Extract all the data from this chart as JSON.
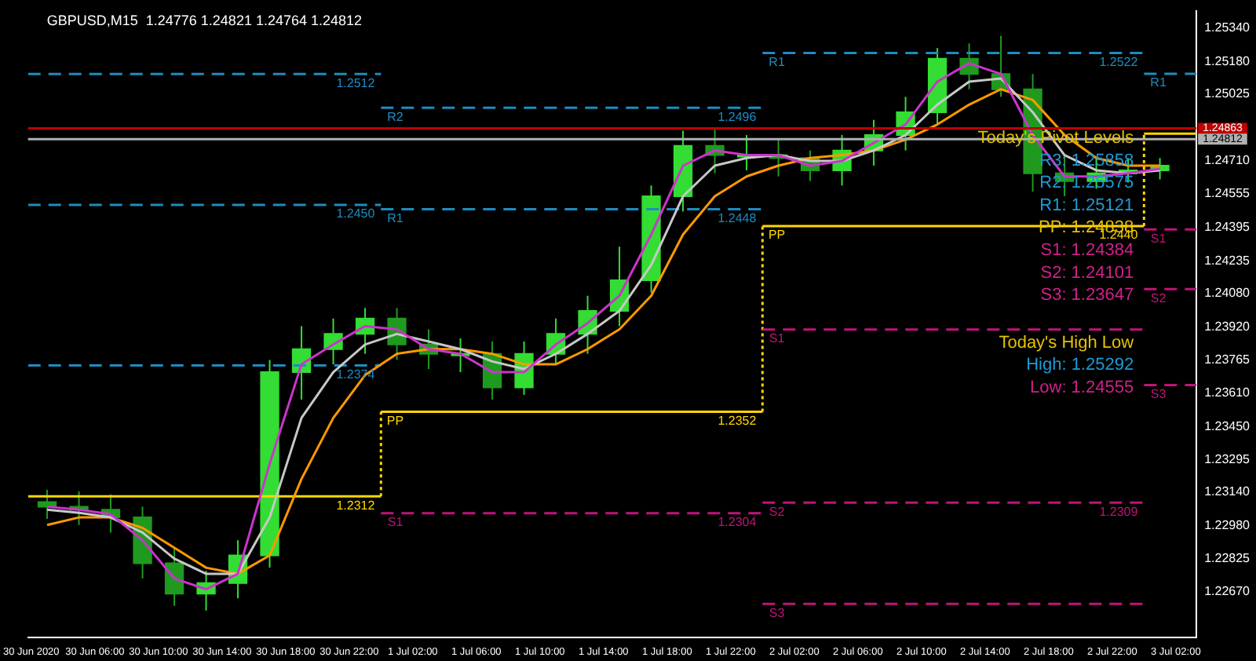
{
  "chart_data": {
    "type": "candlestick",
    "title": "GBPUSD,M15  1.24776 1.24821 1.24764 1.24812",
    "xlim": [
      "2020-06-30T01:48",
      "2020-07-03T03:18"
    ],
    "xticks": [
      {
        "value": "2020-06-30T02:00",
        "label": "30 Jun 2020"
      },
      {
        "value": "2020-06-30T06:00",
        "label": "30 Jun 06:00"
      },
      {
        "value": "2020-06-30T10:00",
        "label": "30 Jun 10:00"
      },
      {
        "value": "2020-06-30T14:00",
        "label": "30 Jun 14:00"
      },
      {
        "value": "2020-06-30T18:00",
        "label": "30 Jun 18:00"
      },
      {
        "value": "2020-06-30T22:00",
        "label": "30 Jun 22:00"
      },
      {
        "value": "2020-07-01T02:00",
        "label": "1 Jul 02:00"
      },
      {
        "value": "2020-07-01T06:00",
        "label": "1 Jul 06:00"
      },
      {
        "value": "2020-07-01T10:00",
        "label": "1 Jul 10:00"
      },
      {
        "value": "2020-07-01T14:00",
        "label": "1 Jul 14:00"
      },
      {
        "value": "2020-07-01T18:00",
        "label": "1 Jul 18:00"
      },
      {
        "value": "2020-07-01T22:00",
        "label": "1 Jul 22:00"
      },
      {
        "value": "2020-07-02T02:00",
        "label": "2 Jul 02:00"
      },
      {
        "value": "2020-07-02T06:00",
        "label": "2 Jul 06:00"
      },
      {
        "value": "2020-07-02T10:00",
        "label": "2 Jul 10:00"
      },
      {
        "value": "2020-07-02T14:00",
        "label": "2 Jul 14:00"
      },
      {
        "value": "2020-07-02T18:00",
        "label": "2 Jul 18:00"
      },
      {
        "value": "2020-07-02T22:00",
        "label": "2 Jul 22:00"
      },
      {
        "value": "2020-07-03T02:00",
        "label": "3 Jul 02:00"
      }
    ],
    "ylim": [
      1.2245,
      1.2542
    ],
    "yticks": [
      {
        "value": 1.2534,
        "label": "1.25340"
      },
      {
        "value": 1.2518,
        "label": "1.25180"
      },
      {
        "value": 1.25025,
        "label": "1.25025"
      },
      {
        "value": 1.2471,
        "label": "1.24710"
      },
      {
        "value": 1.24555,
        "label": "1.24555"
      },
      {
        "value": 1.24395,
        "label": "1.24395"
      },
      {
        "value": 1.24235,
        "label": "1.24235"
      },
      {
        "value": 1.2408,
        "label": "1.24080"
      },
      {
        "value": 1.2392,
        "label": "1.23920"
      },
      {
        "value": 1.23765,
        "label": "1.23765"
      },
      {
        "value": 1.2361,
        "label": "1.23610"
      },
      {
        "value": 1.2345,
        "label": "1.23450"
      },
      {
        "value": 1.23295,
        "label": "1.23295"
      },
      {
        "value": 1.2314,
        "label": "1.23140"
      },
      {
        "value": 1.2298,
        "label": "1.22980"
      },
      {
        "value": 1.22825,
        "label": "1.22825"
      },
      {
        "value": 1.2267,
        "label": "1.22670"
      }
    ],
    "ref_lines": [
      {
        "axis": "y",
        "value": 1.24863,
        "label": "1.24863",
        "color": "#c00000"
      },
      {
        "axis": "y",
        "value": 1.24812,
        "label": "1.24812",
        "color": "#b0b0b0"
      }
    ],
    "series": [
      {
        "type": "line",
        "color": "#cc33cc",
        "line_style": "solid",
        "x": [
          "2020-06-30T03:00",
          "2020-06-30T05:00",
          "2020-06-30T07:00",
          "2020-06-30T09:00",
          "2020-06-30T11:00",
          "2020-06-30T13:00",
          "2020-06-30T15:00",
          "2020-06-30T17:00",
          "2020-06-30T19:00",
          "2020-06-30T21:00",
          "2020-06-30T23:00",
          "2020-07-01T01:00",
          "2020-07-01T03:00",
          "2020-07-01T05:00",
          "2020-07-01T07:00",
          "2020-07-01T09:00",
          "2020-07-01T11:00",
          "2020-07-01T13:00",
          "2020-07-01T15:00",
          "2020-07-01T17:00",
          "2020-07-01T19:00",
          "2020-07-01T21:00",
          "2020-07-01T23:00",
          "2020-07-02T01:00",
          "2020-07-02T03:00",
          "2020-07-02T05:00",
          "2020-07-02T07:00",
          "2020-07-02T09:00",
          "2020-07-02T11:00",
          "2020-07-02T13:00",
          "2020-07-02T15:00",
          "2020-07-02T17:00",
          "2020-07-02T19:00",
          "2020-07-02T21:00",
          "2020-07-02T23:00",
          "2020-07-03T01:00"
        ],
        "values": [
          1.23071,
          1.23057,
          1.23035,
          1.22912,
          1.22731,
          1.2268,
          1.22753,
          1.23274,
          1.23745,
          1.23839,
          1.23926,
          1.23911,
          1.23817,
          1.23795,
          1.23708,
          1.23708,
          1.23839,
          1.2394,
          1.2407,
          1.2436,
          1.24686,
          1.24758,
          1.24736,
          1.24736,
          1.24686,
          1.24708,
          1.24794,
          1.24881,
          1.25084,
          1.25171,
          1.2512,
          1.24831,
          1.24635,
          1.24635,
          1.2465,
          1.24671
        ]
      },
      {
        "type": "line",
        "color": "#c8c8c8",
        "line_style": "solid",
        "x": [
          "2020-06-30T03:00",
          "2020-06-30T05:00",
          "2020-06-30T07:00",
          "2020-06-30T09:00",
          "2020-06-30T11:00",
          "2020-06-30T13:00",
          "2020-06-30T15:00",
          "2020-06-30T17:00",
          "2020-06-30T19:00",
          "2020-06-30T21:00",
          "2020-06-30T23:00",
          "2020-07-01T01:00",
          "2020-07-01T03:00",
          "2020-07-01T05:00",
          "2020-07-01T07:00",
          "2020-07-01T09:00",
          "2020-07-01T11:00",
          "2020-07-01T13:00",
          "2020-07-01T15:00",
          "2020-07-01T17:00",
          "2020-07-01T19:00",
          "2020-07-01T21:00",
          "2020-07-01T23:00",
          "2020-07-02T01:00",
          "2020-07-02T03:00",
          "2020-07-02T05:00",
          "2020-07-02T07:00",
          "2020-07-02T09:00",
          "2020-07-02T11:00",
          "2020-07-02T13:00",
          "2020-07-02T15:00",
          "2020-07-02T17:00",
          "2020-07-02T19:00",
          "2020-07-02T21:00",
          "2020-07-02T23:00",
          "2020-07-03T01:00"
        ],
        "values": [
          1.23057,
          1.23042,
          1.2302,
          1.22948,
          1.22825,
          1.22753,
          1.22753,
          1.2302,
          1.23491,
          1.23708,
          1.23839,
          1.23889,
          1.23853,
          1.23817,
          1.23759,
          1.23723,
          1.23795,
          1.23889,
          1.23998,
          1.24215,
          1.24541,
          1.24686,
          1.24722,
          1.24736,
          1.24708,
          1.24708,
          1.24758,
          1.24831,
          1.24975,
          1.25084,
          1.25099,
          1.24939,
          1.24736,
          1.24664,
          1.2465,
          1.24664
        ]
      },
      {
        "type": "line",
        "color": "#ff9900",
        "line_style": "solid",
        "x": [
          "2020-06-30T03:00",
          "2020-06-30T05:00",
          "2020-06-30T07:00",
          "2020-06-30T09:00",
          "2020-06-30T11:00",
          "2020-06-30T13:00",
          "2020-06-30T15:00",
          "2020-06-30T17:00",
          "2020-06-30T19:00",
          "2020-06-30T21:00",
          "2020-06-30T23:00",
          "2020-07-01T01:00",
          "2020-07-01T03:00",
          "2020-07-01T05:00",
          "2020-07-01T07:00",
          "2020-07-01T09:00",
          "2020-07-01T11:00",
          "2020-07-01T13:00",
          "2020-07-01T15:00",
          "2020-07-01T17:00",
          "2020-07-01T19:00",
          "2020-07-01T21:00",
          "2020-07-01T23:00",
          "2020-07-02T01:00",
          "2020-07-02T03:00",
          "2020-07-02T05:00",
          "2020-07-02T07:00",
          "2020-07-02T09:00",
          "2020-07-02T11:00",
          "2020-07-02T13:00",
          "2020-07-02T15:00",
          "2020-07-02T17:00",
          "2020-07-02T19:00",
          "2020-07-02T21:00",
          "2020-07-02T23:00",
          "2020-07-03T01:00"
        ],
        "values": [
          1.22984,
          1.2302,
          1.2302,
          1.2297,
          1.22876,
          1.22782,
          1.22753,
          1.2284,
          1.23202,
          1.23491,
          1.23694,
          1.23795,
          1.23817,
          1.23817,
          1.23795,
          1.23745,
          1.23745,
          1.23817,
          1.23911,
          1.2407,
          1.2436,
          1.24541,
          1.24635,
          1.24686,
          1.24722,
          1.24736,
          1.24758,
          1.24809,
          1.24881,
          1.24975,
          1.25048,
          1.24997,
          1.24831,
          1.24722,
          1.24686,
          1.24686
        ]
      },
      {
        "type": "line",
        "color": "#1e8cc0",
        "line_style": "dashed",
        "x": [
          "2020-06-30T01:48",
          "2020-07-01T00:00"
        ],
        "values": [
          1.2512,
          1.2512
        ]
      },
      {
        "type": "line",
        "color": "#1e8cc0",
        "line_style": "dashed",
        "x": [
          "2020-06-30T01:48",
          "2020-07-01T00:00"
        ],
        "values": [
          1.245,
          1.245
        ]
      },
      {
        "type": "line",
        "color": "#1e8cc0",
        "line_style": "dashed",
        "x": [
          "2020-06-30T01:48",
          "2020-07-01T00:00"
        ],
        "values": [
          1.2374,
          1.2374
        ]
      },
      {
        "type": "line",
        "color": "#1e8cc0",
        "line_style": "dashed",
        "x": [
          "2020-07-01T00:00",
          "2020-07-02T00:00"
        ],
        "values": [
          1.2496,
          1.2496
        ]
      },
      {
        "type": "line",
        "color": "#1e8cc0",
        "line_style": "dashed",
        "x": [
          "2020-07-01T00:00",
          "2020-07-02T00:00"
        ],
        "values": [
          1.2448,
          1.2448
        ]
      },
      {
        "type": "line",
        "color": "#c0147a",
        "line_style": "dashed",
        "x": [
          "2020-07-01T00:00",
          "2020-07-02T00:00"
        ],
        "values": [
          1.2304,
          1.2304
        ]
      },
      {
        "type": "line",
        "color": "#1e8cc0",
        "line_style": "dashed",
        "x": [
          "2020-07-02T00:00",
          "2020-07-03T00:00"
        ],
        "values": [
          1.2522,
          1.2522
        ]
      },
      {
        "type": "line",
        "color": "#c0147a",
        "line_style": "dashed",
        "x": [
          "2020-07-02T00:00",
          "2020-07-03T00:00"
        ],
        "values": [
          1.2391,
          1.2391
        ]
      },
      {
        "type": "line",
        "color": "#c0147a",
        "line_style": "dashed",
        "x": [
          "2020-07-02T00:00",
          "2020-07-03T00:00"
        ],
        "values": [
          1.2309,
          1.2309
        ]
      },
      {
        "type": "line",
        "color": "#c0147a",
        "line_style": "dashed",
        "x": [
          "2020-07-02T00:00",
          "2020-07-03T00:00"
        ],
        "values": [
          1.2261,
          1.2261
        ]
      },
      {
        "type": "line",
        "color": "#1e8cc0",
        "line_style": "dashed",
        "x": [
          "2020-07-03T00:00",
          "2020-07-03T03:18"
        ],
        "values": [
          1.25121,
          1.25121
        ]
      },
      {
        "type": "line",
        "color": "#c0147a",
        "line_style": "dashed",
        "x": [
          "2020-07-03T00:00",
          "2020-07-03T03:18"
        ],
        "values": [
          1.24384,
          1.24384
        ]
      },
      {
        "type": "line",
        "color": "#c0147a",
        "line_style": "dashed",
        "x": [
          "2020-07-03T00:00",
          "2020-07-03T03:18"
        ],
        "values": [
          1.24101,
          1.24101
        ]
      },
      {
        "type": "line",
        "color": "#c0147a",
        "line_style": "dashed",
        "x": [
          "2020-07-03T00:00",
          "2020-07-03T03:18"
        ],
        "values": [
          1.23647,
          1.23647
        ]
      },
      {
        "type": "step",
        "color": "#ffd700",
        "line_style": "solid",
        "x": [
          "2020-06-30T01:48",
          "2020-07-01T00:00",
          "2020-07-02T00:00",
          "2020-07-03T00:00",
          "2020-07-03T03:18"
        ],
        "values": [
          1.2312,
          1.2352,
          1.244,
          1.24838,
          1.24838
        ]
      },
      {
        "colors": [
          "#1f9a1f",
          "#1f9a1f",
          "#1f9a1f",
          "#1f9a1f",
          "#1f9a1f",
          "#33dd33",
          "#33dd33",
          "#33dd33",
          "#33dd33",
          "#33dd33",
          "#33dd33",
          "#1f9a1f",
          "#1f9a1f",
          "#33dd33",
          "#1f9a1f",
          "#33dd33",
          "#33dd33",
          "#33dd33",
          "#33dd33",
          "#33dd33",
          "#33dd33",
          "#1f9a1f",
          "#33dd33",
          "#1f9a1f",
          "#1f9a1f",
          "#33dd33",
          "#33dd33",
          "#33dd33",
          "#33dd33",
          "#1f9a1f",
          "#1f9a1f",
          "#1f9a1f",
          "#1f9a1f",
          "#33dd33",
          "#33dd33",
          "#33dd33"
        ],
        "x": [
          "2020-06-30T03:00",
          "2020-06-30T05:00",
          "2020-06-30T07:00",
          "2020-06-30T09:00",
          "2020-06-30T11:00",
          "2020-06-30T13:00",
          "2020-06-30T15:00",
          "2020-06-30T17:00",
          "2020-06-30T19:00",
          "2020-06-30T21:00",
          "2020-06-30T23:00",
          "2020-07-01T01:00",
          "2020-07-01T03:00",
          "2020-07-01T05:00",
          "2020-07-01T07:00",
          "2020-07-01T09:00",
          "2020-07-01T11:00",
          "2020-07-01T13:00",
          "2020-07-01T15:00",
          "2020-07-01T17:00",
          "2020-07-01T19:00",
          "2020-07-01T21:00",
          "2020-07-01T23:00",
          "2020-07-02T01:00",
          "2020-07-02T03:00",
          "2020-07-02T05:00",
          "2020-07-02T07:00",
          "2020-07-02T09:00",
          "2020-07-02T11:00",
          "2020-07-02T13:00",
          "2020-07-02T15:00",
          "2020-07-02T17:00",
          "2020-07-02T19:00",
          "2020-07-02T21:00",
          "2020-07-02T23:00",
          "2020-07-03T01:00"
        ],
        "ohlc": [
          [
            1.23093,
            1.23151,
            1.23013,
            1.23071
          ],
          [
            1.23071,
            1.23144,
            1.22984,
            1.23057
          ],
          [
            1.23057,
            1.23129,
            1.22948,
            1.2302
          ],
          [
            1.2302,
            1.23071,
            1.22731,
            1.22803
          ],
          [
            1.22803,
            1.22876,
            1.22601,
            1.22659
          ],
          [
            1.22659,
            1.22767,
            1.22579,
            1.22709
          ],
          [
            1.22709,
            1.22912,
            1.22637,
            1.2284
          ],
          [
            1.2284,
            1.23766,
            1.22782,
            1.23708
          ],
          [
            1.23708,
            1.23926,
            1.23578,
            1.23817
          ],
          [
            1.23817,
            1.23962,
            1.23745,
            1.23889
          ],
          [
            1.23889,
            1.24012,
            1.23795,
            1.23962
          ],
          [
            1.23962,
            1.24012,
            1.23766,
            1.23839
          ],
          [
            1.23839,
            1.23911,
            1.23723,
            1.23795
          ],
          [
            1.23795,
            1.23868,
            1.23708,
            1.23795
          ],
          [
            1.23795,
            1.23853,
            1.23578,
            1.23636
          ],
          [
            1.23636,
            1.23853,
            1.236,
            1.23795
          ],
          [
            1.23795,
            1.23962,
            1.23745,
            1.23889
          ],
          [
            1.23889,
            1.2407,
            1.23795,
            1.23998
          ],
          [
            1.23998,
            1.24302,
            1.23926,
            1.24143
          ],
          [
            1.24143,
            1.24592,
            1.24085,
            1.24541
          ],
          [
            1.24541,
            1.24852,
            1.24469,
            1.2478
          ],
          [
            1.2478,
            1.24867,
            1.2465,
            1.24736
          ],
          [
            1.24736,
            1.24831,
            1.24664,
            1.24736
          ],
          [
            1.24736,
            1.24809,
            1.24635,
            1.24722
          ],
          [
            1.24722,
            1.24758,
            1.24613,
            1.24664
          ],
          [
            1.24664,
            1.24831,
            1.24592,
            1.24758
          ],
          [
            1.24758,
            1.24903,
            1.24686,
            1.24831
          ],
          [
            1.24831,
            1.25012,
            1.24758,
            1.24939
          ],
          [
            1.24939,
            1.25243,
            1.24881,
            1.25193
          ],
          [
            1.25193,
            1.25265,
            1.25048,
            1.2512
          ],
          [
            1.2512,
            1.25301,
            1.25012,
            1.25048
          ],
          [
            1.25048,
            1.2512,
            1.24563,
            1.2465
          ],
          [
            1.2465,
            1.24736,
            1.24541,
            1.24613
          ],
          [
            1.24613,
            1.24722,
            1.24577,
            1.2465
          ],
          [
            1.2465,
            1.24722,
            1.24606,
            1.24664
          ],
          [
            1.24664,
            1.24722,
            1.24621,
            1.24686
          ]
        ]
      }
    ],
    "annotations": [
      {
        "text": "1.2512",
        "x": "2020-06-30T22:24",
        "y": 1.2512
      },
      {
        "text": "1.2450",
        "x": "2020-06-30T22:24",
        "y": 1.245
      },
      {
        "text": "1.2374",
        "x": "2020-06-30T22:24",
        "y": 1.2374
      },
      {
        "text": "1.2312",
        "x": "2020-06-30T22:24",
        "y": 1.2312
      },
      {
        "text": "R2",
        "x": "2020-07-01T00:54",
        "y": 1.2496
      },
      {
        "text": "R1",
        "x": "2020-07-01T00:54",
        "y": 1.2448
      },
      {
        "text": "PP",
        "x": "2020-07-01T00:54",
        "y": 1.2352
      },
      {
        "text": "S1",
        "x": "2020-07-01T00:54",
        "y": 1.2304
      },
      {
        "text": "1.2496",
        "x": "2020-07-01T22:24",
        "y": 1.2496
      },
      {
        "text": "1.2448",
        "x": "2020-07-01T22:24",
        "y": 1.2448
      },
      {
        "text": "1.2352",
        "x": "2020-07-01T22:24",
        "y": 1.2352
      },
      {
        "text": "1.2304",
        "x": "2020-07-01T22:24",
        "y": 1.2304
      },
      {
        "text": "R1",
        "x": "2020-07-02T00:54",
        "y": 1.2522
      },
      {
        "text": "PP",
        "x": "2020-07-02T00:54",
        "y": 1.244
      },
      {
        "text": "S1",
        "x": "2020-07-02T00:54",
        "y": 1.2391
      },
      {
        "text": "S2",
        "x": "2020-07-02T00:54",
        "y": 1.2309
      },
      {
        "text": "S3",
        "x": "2020-07-02T00:54",
        "y": 1.2261
      },
      {
        "text": "1.2522",
        "x": "2020-07-02T22:24",
        "y": 1.2522
      },
      {
        "text": "1.2440",
        "x": "2020-07-02T22:24",
        "y": 1.244
      },
      {
        "text": "1.2309",
        "x": "2020-07-02T22:24",
        "y": 1.2309
      },
      {
        "text": "R1",
        "x": "2020-07-03T00:54",
        "y": 1.25121
      },
      {
        "text": "S1",
        "x": "2020-07-03T00:54",
        "y": 1.24384
      },
      {
        "text": "S2",
        "x": "2020-07-03T00:54",
        "y": 1.24101
      },
      {
        "text": "S3",
        "x": "2020-07-03T00:54",
        "y": 1.23647
      },
      "Today's Pivot Levels",
      "R3: 1.25858",
      "R2: 1.25575",
      "R1: 1.25121",
      "PP: 1.24838",
      "S1: 1.24384",
      "S2: 1.24101",
      "S3: 1.23647",
      "Today's High Low",
      "High: 1.25292",
      "Low: 1.24555"
    ]
  }
}
